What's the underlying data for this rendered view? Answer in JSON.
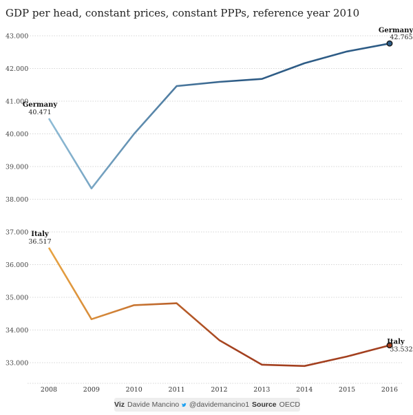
{
  "title": "GDP per head, constant prices, constant PPPs, reference year 2010",
  "chart_data": {
    "type": "line",
    "title": "GDP per head, constant prices, constant PPPs, reference year 2010",
    "x": [
      "2008",
      "2009",
      "2010",
      "2011",
      "2012",
      "2013",
      "2014",
      "2015",
      "2016"
    ],
    "ylim": [
      32500,
      43300
    ],
    "yticks": [
      "33.000",
      "34.000",
      "35.000",
      "36.000",
      "37.000",
      "38.000",
      "39.000",
      "40.000",
      "41.000",
      "42.000",
      "43.000"
    ],
    "grid": true,
    "series": [
      {
        "name": "Germany",
        "values": [
          40471,
          38330,
          40000,
          41460,
          41590,
          41680,
          42160,
          42520,
          42765
        ],
        "color_start": "#8fbcd6",
        "color_end": "#2e5c86",
        "start_label": "Germany",
        "start_value_label": "40.471",
        "end_label": "Germany",
        "end_value_label": "42.765"
      },
      {
        "name": "Italy",
        "values": [
          36517,
          34330,
          34760,
          34820,
          33690,
          32940,
          32900,
          33190,
          33532
        ],
        "color_start": "#e8a443",
        "color_end": "#a3401f",
        "start_label": "Italy",
        "start_value_label": "36.517",
        "end_label": "Italy",
        "end_value_label": "33.532"
      }
    ]
  },
  "footer": {
    "viz_label": "Viz",
    "author": "Davide Mancino",
    "handle": "@davidemancino1",
    "source_label": "Source",
    "source": "OECD"
  }
}
